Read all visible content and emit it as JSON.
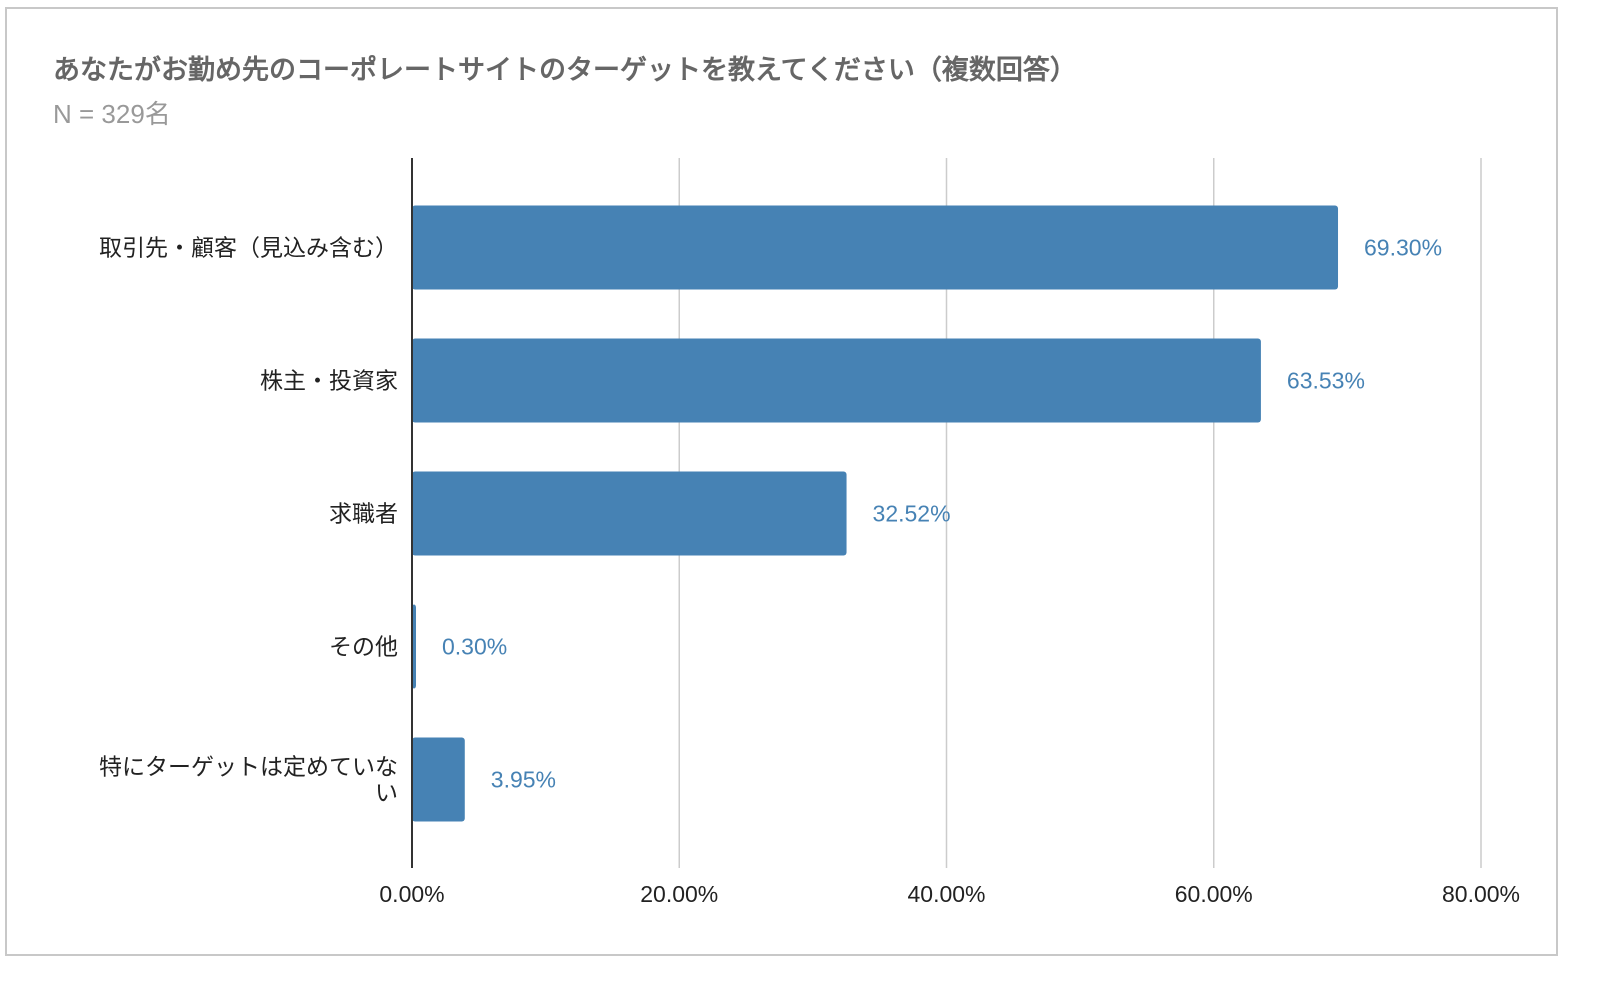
{
  "chart_data": {
    "type": "bar",
    "orientation": "horizontal",
    "title": "あなたがお勤め先のコーポレートサイトのターゲットを教えてください（複数回答）",
    "subtitle": "N = 329名",
    "categories": [
      "取引先・顧客（見込み含む）",
      "株主・投資家",
      "求職者",
      "その他",
      "特にターゲットは定めていない"
    ],
    "category_lines": [
      [
        "取引先・顧客（見込み含む）"
      ],
      [
        "株主・投資家"
      ],
      [
        "求職者"
      ],
      [
        "その他"
      ],
      [
        "特にターゲットは定めていな",
        "い"
      ]
    ],
    "values": [
      69.3,
      63.53,
      32.52,
      0.3,
      3.95
    ],
    "data_labels": [
      "69.30%",
      "63.53%",
      "32.52%",
      "0.30%",
      "3.95%"
    ],
    "xlim": [
      0,
      80
    ],
    "xticks": [
      0,
      20,
      40,
      60,
      80
    ],
    "xtick_labels": [
      "0.00%",
      "20.00%",
      "40.00%",
      "60.00%",
      "80.00%"
    ],
    "xlabel": "",
    "ylabel": "",
    "grid": true,
    "legend": "none",
    "colors": {
      "bar": "#4682b4",
      "label": "#4682b4",
      "grid": "#cccccc",
      "axis": "#333333"
    }
  }
}
